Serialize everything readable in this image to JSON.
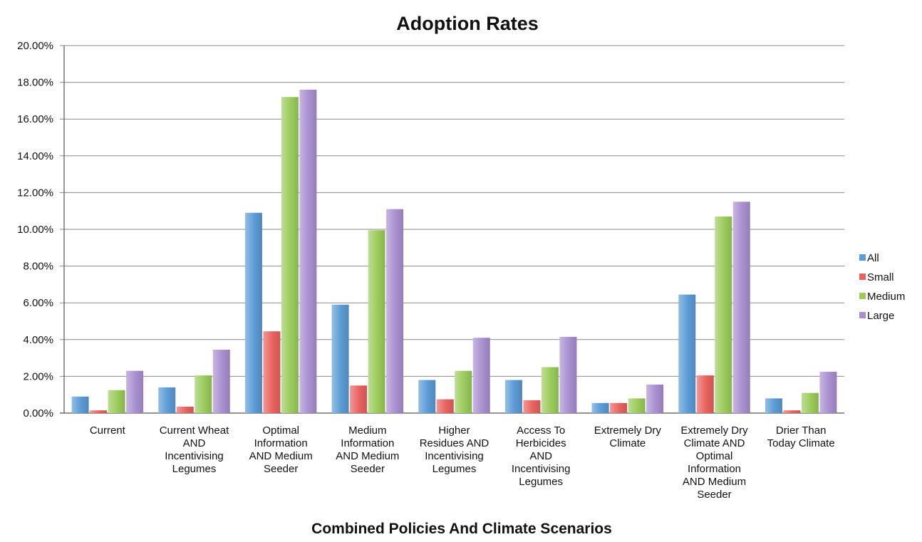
{
  "chart_data": {
    "type": "bar",
    "title": "Adoption Rates",
    "xlabel": "Combined Policies And Climate Scenarios",
    "ylabel": "",
    "ylim": [
      0,
      20
    ],
    "y_ticks": [
      0,
      2,
      4,
      6,
      8,
      10,
      12,
      14,
      16,
      18,
      20
    ],
    "y_tick_labels": [
      "0.00%",
      "2.00%",
      "4.00%",
      "6.00%",
      "8.00%",
      "10.00%",
      "12.00%",
      "14.00%",
      "16.00%",
      "18.00%",
      "20.00%"
    ],
    "grid": true,
    "legend_position": "right",
    "categories": [
      [
        "Current"
      ],
      [
        "Current Wheat",
        "AND",
        "Incentivising",
        "Legumes"
      ],
      [
        "Optimal",
        "Information",
        "AND Medium",
        "Seeder"
      ],
      [
        "Medium",
        "Information",
        "AND Medium",
        "Seeder"
      ],
      [
        "Higher",
        "Residues AND",
        "Incentivising",
        "Legumes"
      ],
      [
        "Access To",
        "Herbicides",
        "AND",
        "Incentivising",
        "Legumes"
      ],
      [
        "Extremely Dry",
        "Climate"
      ],
      [
        "Extremely Dry",
        "Climate AND",
        "Optimal",
        "Information",
        "AND Medium",
        "Seeder"
      ],
      [
        "Drier Than",
        "Today Climate"
      ]
    ],
    "series": [
      {
        "name": "All",
        "color": "#5b9bd5",
        "values": [
          0.9,
          1.4,
          10.9,
          5.9,
          1.8,
          1.8,
          0.55,
          6.45,
          0.8
        ]
      },
      {
        "name": "Small",
        "color": "#e8625f",
        "values": [
          0.15,
          0.35,
          4.45,
          1.5,
          0.75,
          0.7,
          0.55,
          2.05,
          0.15
        ]
      },
      {
        "name": "Medium",
        "color": "#9bcb5b",
        "values": [
          1.25,
          2.05,
          17.2,
          9.95,
          2.3,
          2.5,
          0.8,
          10.7,
          1.1
        ]
      },
      {
        "name": "Large",
        "color": "#a98fd0",
        "values": [
          2.3,
          3.45,
          17.6,
          11.1,
          4.1,
          4.15,
          1.55,
          11.5,
          2.25
        ]
      }
    ]
  }
}
